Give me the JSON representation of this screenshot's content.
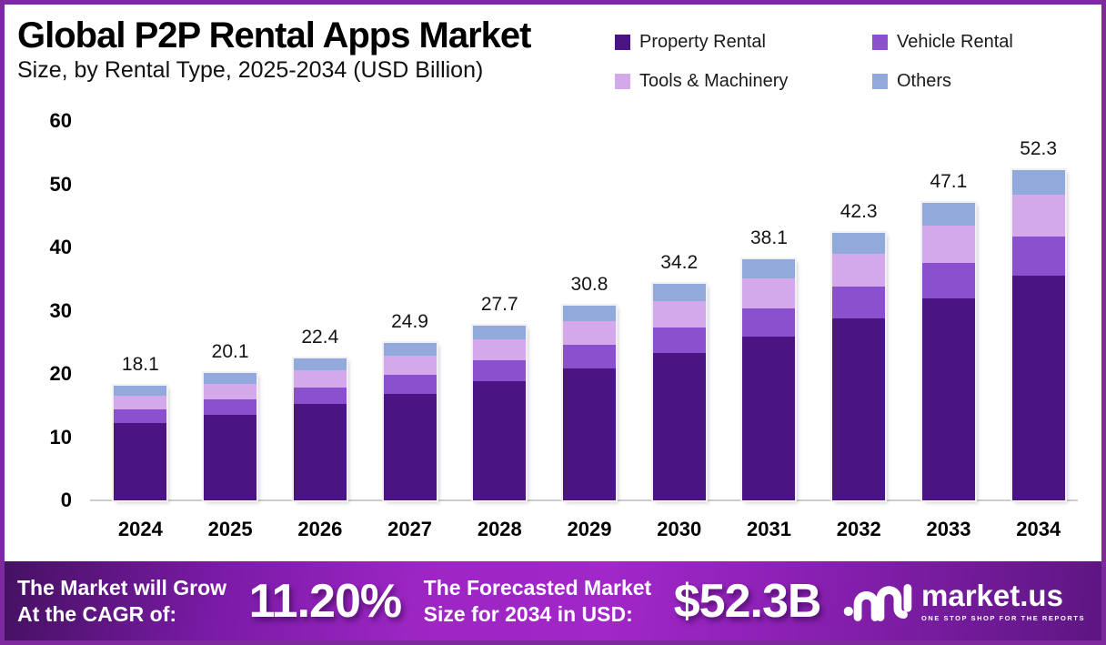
{
  "header": {
    "title": "Global P2P Rental Apps Market",
    "subtitle": "Size, by Rental Type, 2025-2034 (USD Billion)"
  },
  "chart_data": {
    "type": "bar",
    "stacked": true,
    "title": "Global P2P Rental Apps Market Size, by Rental Type, 2025-2034 (USD Billion)",
    "unit": "USD Billion",
    "categories": [
      "2024",
      "2025",
      "2026",
      "2027",
      "2028",
      "2029",
      "2030",
      "2031",
      "2032",
      "2033",
      "2034"
    ],
    "totals": [
      18.1,
      20.1,
      22.4,
      24.9,
      27.7,
      30.8,
      34.2,
      38.1,
      42.3,
      47.1,
      52.3
    ],
    "total_labels": [
      "18.1",
      "20.1",
      "22.4",
      "24.9",
      "27.7",
      "30.8",
      "34.2",
      "38.1",
      "42.3",
      "47.1",
      "52.3"
    ],
    "series": [
      {
        "name": "Property Rental",
        "color": "#4a1482",
        "values": [
          12.2,
          13.6,
          15.2,
          16.9,
          18.8,
          20.9,
          23.3,
          25.9,
          28.8,
          32.0,
          35.6
        ]
      },
      {
        "name": "Vehicle Rental",
        "color": "#8a50ce",
        "values": [
          2.2,
          2.4,
          2.7,
          3.0,
          3.3,
          3.7,
          4.0,
          4.5,
          5.0,
          5.6,
          6.2
        ]
      },
      {
        "name": "Tools & Machinery",
        "color": "#d3a9ec",
        "values": [
          2.2,
          2.4,
          2.7,
          3.0,
          3.4,
          3.8,
          4.2,
          4.7,
          5.2,
          5.8,
          6.5
        ]
      },
      {
        "name": "Others",
        "color": "#92a9dc",
        "values": [
          1.5,
          1.7,
          1.8,
          2.0,
          2.2,
          2.4,
          2.7,
          3.0,
          3.3,
          3.7,
          4.0
        ]
      }
    ],
    "ylim": [
      0,
      60
    ],
    "yticks": [
      0,
      10,
      20,
      30,
      40,
      50,
      60
    ],
    "grid": false,
    "legend_position": "top-right"
  },
  "footer": {
    "cagr_label_line1": "The Market will Grow",
    "cagr_label_line2": "At the CAGR of:",
    "cagr_value": "11.20%",
    "forecast_label_line1": "The Forecasted Market",
    "forecast_label_line2": "Size for 2034 in USD:",
    "forecast_value": "$52.3B",
    "brand": {
      "name": "market.us",
      "tagline": "ONE STOP SHOP FOR THE REPORTS"
    }
  },
  "colors": {
    "frame_border": "#7c2a9e",
    "baseline": "#cdcdcd",
    "banner_gradient_start": "#451161",
    "banner_gradient_mid": "#a127c8",
    "banner_gradient_end": "#5d1682",
    "text_dark": "#141414",
    "text_light": "#ffffff"
  }
}
